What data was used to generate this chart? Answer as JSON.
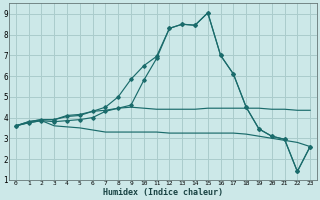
{
  "xlabel": "Humidex (Indice chaleur)",
  "background_color": "#cce8e8",
  "grid_color": "#aacccc",
  "line_color": "#1a6b6b",
  "xlim": [
    -0.5,
    23.5
  ],
  "ylim": [
    1,
    9.5
  ],
  "x": [
    0,
    1,
    2,
    3,
    4,
    5,
    6,
    7,
    8,
    9,
    10,
    11,
    12,
    13,
    14,
    15,
    16,
    17,
    18,
    19,
    20,
    21,
    22,
    23
  ],
  "line_upper": [
    3.6,
    3.8,
    3.9,
    3.9,
    4.1,
    4.15,
    4.3,
    4.35,
    4.45,
    4.5,
    4.45,
    4.4,
    4.4,
    4.4,
    4.4,
    4.45,
    4.45,
    4.45,
    4.45,
    4.45,
    4.4,
    4.4,
    4.35,
    4.35
  ],
  "line_main": [
    3.6,
    3.8,
    3.9,
    3.9,
    4.05,
    4.1,
    4.3,
    4.5,
    5.0,
    5.85,
    6.5,
    6.95,
    8.3,
    8.5,
    8.45,
    9.05,
    7.0,
    6.1,
    4.5,
    3.45,
    3.1,
    2.95,
    1.4,
    2.6
  ],
  "line_mid": [
    3.6,
    3.75,
    3.85,
    3.8,
    3.85,
    3.9,
    4.0,
    4.3,
    4.45,
    4.6,
    5.8,
    6.85,
    8.3,
    8.5,
    8.45,
    9.05,
    7.0,
    6.1,
    4.5,
    3.45,
    3.1,
    2.95,
    1.4,
    2.6
  ],
  "line_lower": [
    3.6,
    3.75,
    3.85,
    3.6,
    3.55,
    3.5,
    3.4,
    3.3,
    3.3,
    3.3,
    3.3,
    3.3,
    3.25,
    3.25,
    3.25,
    3.25,
    3.25,
    3.25,
    3.2,
    3.1,
    3.0,
    2.9,
    2.8,
    2.6
  ],
  "yticks": [
    1,
    2,
    3,
    4,
    5,
    6,
    7,
    8,
    9
  ],
  "xticks": [
    0,
    1,
    2,
    3,
    4,
    5,
    6,
    7,
    8,
    9,
    10,
    11,
    12,
    13,
    14,
    15,
    16,
    17,
    18,
    19,
    20,
    21,
    22,
    23
  ]
}
